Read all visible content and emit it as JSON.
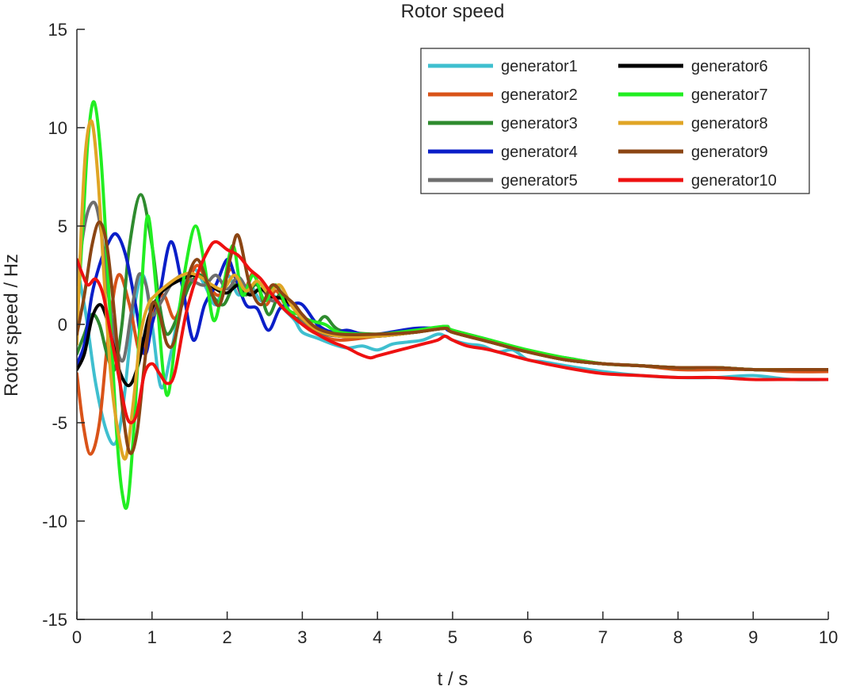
{
  "chart_data": {
    "type": "line",
    "title": "Rotor speed",
    "xlabel": "t / s",
    "ylabel": "Rotor speed / Hz",
    "xlim": [
      0,
      10
    ],
    "ylim": [
      -15,
      15
    ],
    "xticks": [
      0,
      1,
      2,
      3,
      4,
      5,
      6,
      7,
      8,
      9,
      10
    ],
    "yticks": [
      -15,
      -10,
      -5,
      0,
      5,
      10,
      15
    ],
    "grid": false,
    "legend": "top-right",
    "series": [
      {
        "name": "generator1",
        "color": "#3fbfcf",
        "x": [
          0,
          0.12,
          0.25,
          0.4,
          0.52,
          0.62,
          0.75,
          0.88,
          1.0,
          1.12,
          1.25,
          1.4,
          1.55,
          1.7,
          1.85,
          2.0,
          2.15,
          2.3,
          2.45,
          2.6,
          2.75,
          2.9,
          3.0,
          3.2,
          3.4,
          3.6,
          3.8,
          4.0,
          4.2,
          4.4,
          4.6,
          4.8,
          4.9,
          5.0,
          5.2,
          5.4,
          5.6,
          5.8,
          6.0,
          6.2,
          6.5,
          7.0,
          7.5,
          8.0,
          8.5,
          9.0,
          9.5,
          10.0
        ],
        "y": [
          3.0,
          0.5,
          -3.0,
          -5.5,
          -6.0,
          -4.0,
          0.5,
          2.5,
          0.0,
          -3.2,
          -1.5,
          1.5,
          2.8,
          2.0,
          1.0,
          2.5,
          1.5,
          2.0,
          1.2,
          1.5,
          0.8,
          0.2,
          -0.4,
          -0.7,
          -1.0,
          -1.2,
          -1.1,
          -1.3,
          -1.0,
          -0.9,
          -0.8,
          -0.5,
          -0.6,
          -0.8,
          -1.0,
          -1.1,
          -1.4,
          -1.3,
          -1.8,
          -1.9,
          -2.1,
          -2.4,
          -2.6,
          -2.7,
          -2.7,
          -2.6,
          -2.8,
          -2.8
        ]
      },
      {
        "name": "generator2",
        "color": "#d95319",
        "x": [
          0,
          0.08,
          0.18,
          0.3,
          0.42,
          0.55,
          0.7,
          0.85,
          1.0,
          1.15,
          1.3,
          1.45,
          1.6,
          1.75,
          1.9,
          2.05,
          2.2,
          2.35,
          2.5,
          2.65,
          2.8,
          3.0,
          3.2,
          3.5,
          4.0,
          4.5,
          4.9,
          5.0,
          5.5,
          6.0,
          6.5,
          7.0,
          7.5,
          8.0,
          8.5,
          9.0,
          9.5,
          10.0
        ],
        "y": [
          -2.5,
          -5.0,
          -6.6,
          -5.0,
          -0.5,
          2.5,
          1.0,
          -1.5,
          0.5,
          1.5,
          0.3,
          1.8,
          3.0,
          2.0,
          1.5,
          2.8,
          1.5,
          2.6,
          1.0,
          1.7,
          0.8,
          0.0,
          -0.5,
          -0.8,
          -0.6,
          -0.4,
          -0.2,
          -0.4,
          -0.9,
          -1.4,
          -1.8,
          -2.0,
          -2.1,
          -2.3,
          -2.3,
          -2.3,
          -2.4,
          -2.4
        ]
      },
      {
        "name": "generator3",
        "color": "#2e8b2e",
        "x": [
          0,
          0.1,
          0.2,
          0.3,
          0.4,
          0.5,
          0.6,
          0.7,
          0.85,
          1.0,
          1.1,
          1.2,
          1.35,
          1.5,
          1.65,
          1.8,
          1.95,
          2.1,
          2.25,
          2.4,
          2.55,
          2.7,
          2.85,
          3.0,
          3.15,
          3.3,
          3.5,
          4.0,
          4.5,
          4.9,
          5.0,
          5.5,
          6.0,
          6.5,
          7.0,
          7.5,
          8.0,
          8.5,
          9.0,
          9.5,
          10.0
        ],
        "y": [
          -1.5,
          -0.5,
          0.5,
          0.0,
          -1.5,
          -2.3,
          0.0,
          4.0,
          6.6,
          4.0,
          1.0,
          -0.5,
          0.5,
          2.0,
          2.5,
          1.5,
          1.0,
          2.0,
          1.5,
          2.0,
          0.5,
          1.5,
          0.5,
          0.2,
          -0.2,
          0.4,
          -0.3,
          -0.5,
          -0.4,
          -0.1,
          -0.3,
          -0.8,
          -1.4,
          -1.7,
          -2.0,
          -2.1,
          -2.2,
          -2.2,
          -2.3,
          -2.3,
          -2.3
        ]
      },
      {
        "name": "generator4",
        "color": "#0a1ec8",
        "x": [
          0,
          0.1,
          0.2,
          0.3,
          0.4,
          0.52,
          0.65,
          0.78,
          0.9,
          1.0,
          1.1,
          1.25,
          1.4,
          1.55,
          1.7,
          1.85,
          2.0,
          2.1,
          2.25,
          2.4,
          2.55,
          2.7,
          2.85,
          3.0,
          3.2,
          3.4,
          3.6,
          3.8,
          4.0,
          4.5,
          4.8,
          4.9,
          5.0,
          5.5,
          6.0,
          6.5,
          7.0,
          7.5,
          8.0,
          8.5,
          9.0,
          9.5,
          10.0
        ],
        "y": [
          -2.0,
          -1.0,
          1.5,
          3.0,
          4.0,
          4.6,
          3.5,
          1.0,
          -1.5,
          0.0,
          1.5,
          4.2,
          2.0,
          -0.8,
          1.0,
          2.0,
          3.3,
          2.5,
          1.0,
          0.8,
          -0.3,
          0.8,
          1.0,
          1.0,
          0.0,
          -0.4,
          -0.3,
          -0.5,
          -0.5,
          -0.2,
          -0.2,
          -0.2,
          -0.4,
          -0.9,
          -1.4,
          -1.8,
          -2.0,
          -2.1,
          -2.2,
          -2.2,
          -2.3,
          -2.3,
          -2.3
        ]
      },
      {
        "name": "generator5",
        "color": "#6e6e6e",
        "x": [
          0,
          0.08,
          0.16,
          0.25,
          0.33,
          0.42,
          0.52,
          0.62,
          0.72,
          0.82,
          0.92,
          1.0,
          1.1,
          1.25,
          1.4,
          1.55,
          1.7,
          1.85,
          2.0,
          2.15,
          2.3,
          2.45,
          2.6,
          2.75,
          2.9,
          3.0,
          3.2,
          3.5,
          4.0,
          4.5,
          4.9,
          5.0,
          5.5,
          6.0,
          6.5,
          7.0,
          7.5,
          8.0,
          8.5,
          9.0,
          9.5,
          10.0
        ],
        "y": [
          2.0,
          4.5,
          5.9,
          6.1,
          4.5,
          1.5,
          -1.0,
          -1.8,
          0.5,
          2.5,
          2.0,
          0.5,
          1.0,
          2.0,
          2.5,
          2.2,
          2.0,
          2.5,
          1.8,
          2.4,
          1.6,
          1.8,
          1.2,
          1.4,
          0.8,
          0.2,
          -0.4,
          -0.6,
          -0.6,
          -0.4,
          -0.2,
          -0.4,
          -0.9,
          -1.4,
          -1.8,
          -2.0,
          -2.1,
          -2.2,
          -2.2,
          -2.3,
          -2.3,
          -2.3
        ]
      },
      {
        "name": "generator6",
        "color": "#000000",
        "x": [
          0,
          0.1,
          0.2,
          0.3,
          0.38,
          0.48,
          0.58,
          0.7,
          0.82,
          0.95,
          1.1,
          1.25,
          1.4,
          1.55,
          1.7,
          1.85,
          2.0,
          2.15,
          2.3,
          2.45,
          2.6,
          2.75,
          2.9,
          3.0,
          3.2,
          3.5,
          4.0,
          4.5,
          4.9,
          5.0,
          5.5,
          6.0,
          6.5,
          7.0,
          7.5,
          8.0,
          8.5,
          9.0,
          9.5,
          10.0
        ],
        "y": [
          -2.3,
          -1.5,
          0.3,
          1.0,
          0.5,
          -1.0,
          -2.5,
          -3.1,
          -2.0,
          0.3,
          1.5,
          2.0,
          2.3,
          2.5,
          2.3,
          1.8,
          1.6,
          2.0,
          1.5,
          1.8,
          1.4,
          1.3,
          0.8,
          0.3,
          -0.3,
          -0.6,
          -0.6,
          -0.4,
          -0.2,
          -0.4,
          -0.9,
          -1.4,
          -1.8,
          -2.0,
          -2.1,
          -2.2,
          -2.2,
          -2.3,
          -2.3,
          -2.3
        ]
      },
      {
        "name": "generator7",
        "color": "#22ee22",
        "x": [
          0,
          0.08,
          0.15,
          0.23,
          0.32,
          0.42,
          0.52,
          0.6,
          0.68,
          0.78,
          0.88,
          0.95,
          1.05,
          1.15,
          1.22,
          1.32,
          1.45,
          1.58,
          1.7,
          1.82,
          1.95,
          2.08,
          2.2,
          2.35,
          2.5,
          2.65,
          2.8,
          2.95,
          3.1,
          3.3,
          3.5,
          4.0,
          4.5,
          4.9,
          5.0,
          5.5,
          6.0,
          6.5,
          7.0,
          7.5,
          8.0,
          8.5,
          9.0,
          9.5,
          10.0
        ],
        "y": [
          0.0,
          5.0,
          9.5,
          11.3,
          8.5,
          2.0,
          -5.0,
          -8.5,
          -9.0,
          -4.0,
          3.0,
          5.5,
          2.0,
          -2.5,
          -3.5,
          -0.5,
          3.0,
          5.0,
          3.0,
          0.2,
          2.0,
          4.0,
          1.5,
          2.5,
          1.2,
          2.0,
          0.8,
          0.5,
          0.2,
          0.0,
          -0.4,
          -0.5,
          -0.3,
          -0.1,
          -0.3,
          -0.8,
          -1.3,
          -1.7,
          -2.0,
          -2.1,
          -2.2,
          -2.2,
          -2.3,
          -2.3,
          -2.3
        ]
      },
      {
        "name": "generator8",
        "color": "#e0a525",
        "x": [
          0,
          0.06,
          0.12,
          0.2,
          0.28,
          0.36,
          0.45,
          0.55,
          0.65,
          0.75,
          0.85,
          0.95,
          1.05,
          1.2,
          1.35,
          1.5,
          1.65,
          1.8,
          1.95,
          2.1,
          2.25,
          2.4,
          2.55,
          2.7,
          2.85,
          3.0,
          3.2,
          3.5,
          4.0,
          4.5,
          4.9,
          5.0,
          5.5,
          6.0,
          6.5,
          7.0,
          7.5,
          8.0,
          8.5,
          9.0,
          9.5,
          10.0
        ],
        "y": [
          -1.0,
          5.0,
          9.0,
          10.3,
          7.5,
          2.5,
          -2.5,
          -5.5,
          -6.8,
          -4.0,
          -0.5,
          1.0,
          1.5,
          2.0,
          2.4,
          2.6,
          2.4,
          2.0,
          1.8,
          2.5,
          1.7,
          2.2,
          1.6,
          2.0,
          1.0,
          0.3,
          -0.3,
          -0.6,
          -0.6,
          -0.4,
          -0.2,
          -0.4,
          -0.9,
          -1.4,
          -1.8,
          -2.0,
          -2.1,
          -2.2,
          -2.2,
          -2.3,
          -2.3,
          -2.3
        ]
      },
      {
        "name": "generator9",
        "color": "#8b4513",
        "x": [
          0,
          0.1,
          0.2,
          0.3,
          0.4,
          0.5,
          0.6,
          0.7,
          0.8,
          0.9,
          1.0,
          1.1,
          1.2,
          1.3,
          1.45,
          1.6,
          1.75,
          1.9,
          2.05,
          2.15,
          2.3,
          2.45,
          2.6,
          2.75,
          2.9,
          3.0,
          3.2,
          3.5,
          4.0,
          4.5,
          4.9,
          5.0,
          5.5,
          6.0,
          6.5,
          7.0,
          7.5,
          8.0,
          8.5,
          9.0,
          9.5,
          10.0
        ],
        "y": [
          -0.5,
          1.5,
          4.0,
          5.2,
          4.0,
          0.5,
          -4.0,
          -6.5,
          -5.5,
          -2.0,
          1.0,
          0.5,
          -1.0,
          -0.8,
          2.0,
          3.3,
          2.0,
          1.0,
          3.5,
          4.5,
          2.0,
          1.0,
          2.0,
          1.5,
          1.0,
          0.5,
          -0.2,
          -0.5,
          -0.5,
          -0.4,
          -0.2,
          -0.4,
          -0.9,
          -1.4,
          -1.8,
          -2.0,
          -2.1,
          -2.2,
          -2.2,
          -2.3,
          -2.3,
          -2.3
        ]
      },
      {
        "name": "generator10",
        "color": "#ee1111",
        "x": [
          0,
          0.08,
          0.15,
          0.25,
          0.35,
          0.45,
          0.55,
          0.65,
          0.72,
          0.8,
          0.9,
          1.0,
          1.1,
          1.2,
          1.3,
          1.45,
          1.6,
          1.75,
          1.85,
          2.0,
          2.15,
          2.3,
          2.45,
          2.6,
          2.75,
          2.9,
          3.0,
          3.2,
          3.4,
          3.6,
          3.75,
          3.9,
          4.0,
          4.2,
          4.4,
          4.6,
          4.8,
          4.9,
          5.0,
          5.2,
          5.5,
          6.0,
          6.5,
          7.0,
          7.5,
          8.0,
          8.5,
          9.0,
          9.5,
          10.0
        ],
        "y": [
          3.3,
          2.5,
          2.0,
          2.3,
          1.5,
          -0.5,
          -2.5,
          -4.5,
          -5.0,
          -4.5,
          -2.5,
          -2.0,
          -2.5,
          -3.0,
          -2.5,
          0.5,
          2.5,
          3.8,
          4.2,
          3.8,
          3.5,
          2.8,
          2.3,
          1.5,
          0.8,
          0.3,
          0.0,
          -0.5,
          -0.9,
          -1.2,
          -1.5,
          -1.7,
          -1.6,
          -1.4,
          -1.2,
          -1.0,
          -0.8,
          -0.6,
          -0.8,
          -1.1,
          -1.3,
          -1.8,
          -2.2,
          -2.5,
          -2.6,
          -2.7,
          -2.7,
          -2.8,
          -2.8,
          -2.8
        ]
      }
    ]
  }
}
